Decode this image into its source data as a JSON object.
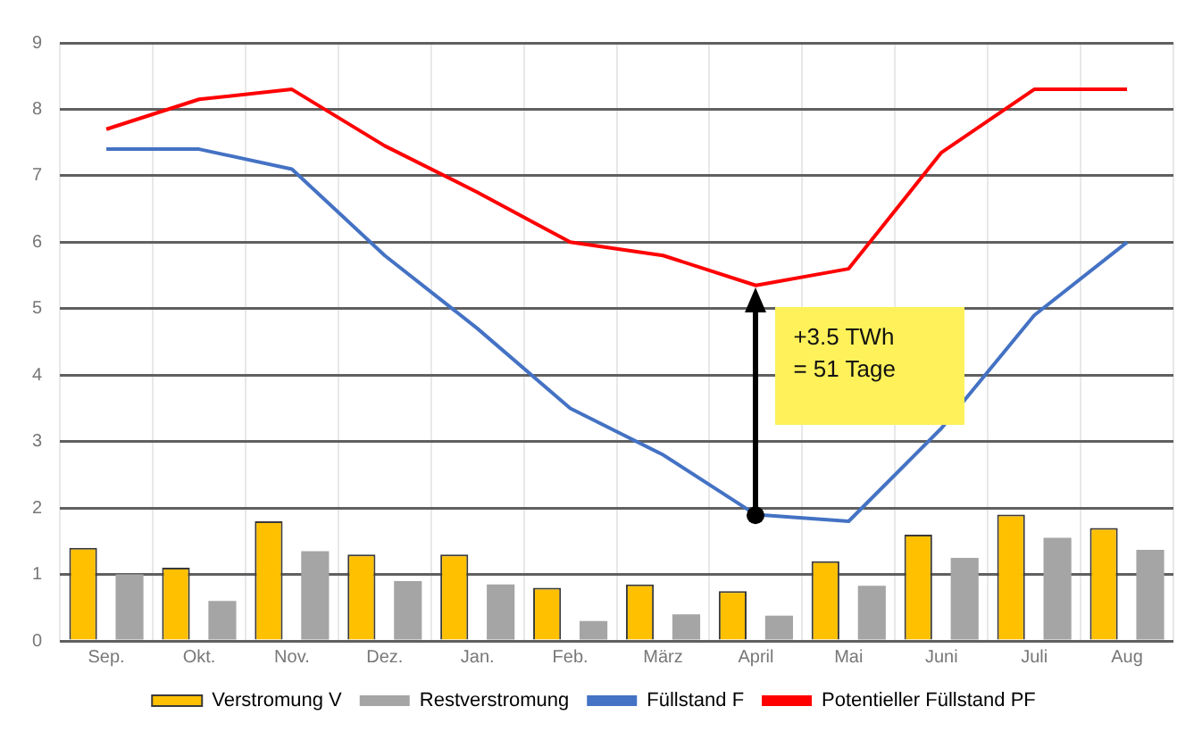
{
  "chart_data": {
    "type": "bar",
    "categories": [
      "Sep.",
      "Okt.",
      "Nov.",
      "Dez.",
      "Jan.",
      "Feb.",
      "März",
      "April",
      "Mai",
      "Juni",
      "Juli",
      "Aug"
    ],
    "series": [
      {
        "name": "Verstromung V",
        "color": "#ffc000",
        "values": [
          1.4,
          1.1,
          1.8,
          1.3,
          1.3,
          0.8,
          0.85,
          0.75,
          1.2,
          1.6,
          1.9,
          1.7
        ]
      },
      {
        "name": "Restverstromung",
        "color": "#a5a5a5",
        "values": [
          1.0,
          0.6,
          1.35,
          0.9,
          0.85,
          0.3,
          0.4,
          0.38,
          0.83,
          1.25,
          1.55,
          1.37
        ]
      },
      {
        "name": "Füllstand F",
        "type": "line",
        "color": "#4472c4",
        "values": [
          7.4,
          7.4,
          7.1,
          5.8,
          4.7,
          3.5,
          2.8,
          1.9,
          1.8,
          3.2,
          4.9,
          6.0
        ]
      },
      {
        "name": "Potentieller Füllstand PF",
        "type": "line",
        "color": "#ff0000",
        "values": [
          7.7,
          8.15,
          8.3,
          7.45,
          6.75,
          6.0,
          5.8,
          5.35,
          5.6,
          7.35,
          8.3,
          8.3
        ]
      }
    ],
    "ylim": [
      0,
      9
    ],
    "yticks": [
      0,
      1,
      2,
      3,
      4,
      5,
      6,
      7,
      8,
      9
    ],
    "grid": true,
    "legend": "bottom",
    "marker": "none",
    "line_style": "solid",
    "annotations": [
      "+3.5 TWh\n= 51 Tage"
    ]
  }
}
